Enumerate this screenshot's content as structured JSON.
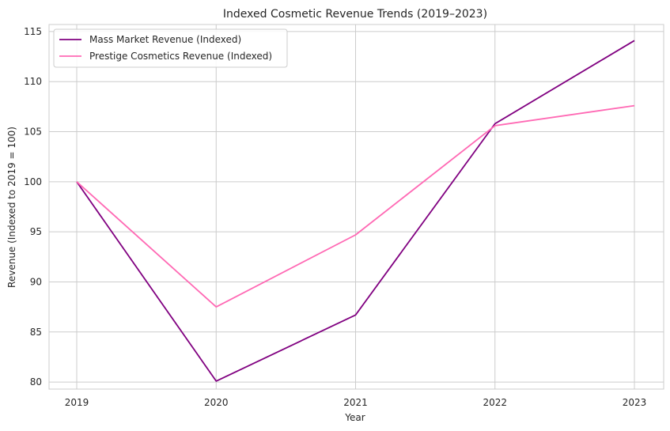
{
  "chart_data": {
    "type": "line",
    "title": "Indexed Cosmetic Revenue Trends (2019–2023)",
    "xlabel": "Year",
    "ylabel": "Revenue (Indexed to 2019 = 100)",
    "categories": [
      "2019",
      "2020",
      "2021",
      "2022",
      "2023"
    ],
    "ylim": [
      79.3,
      115.7
    ],
    "yticks": [
      80,
      85,
      90,
      95,
      100,
      105,
      110,
      115
    ],
    "grid": true,
    "legend_position": "top-left",
    "series": [
      {
        "name": "Mass Market Revenue (Indexed)",
        "color": "#800080",
        "values": [
          100.0,
          80.1,
          86.7,
          105.8,
          114.1
        ]
      },
      {
        "name": "Prestige Cosmetics Revenue (Indexed)",
        "color": "#ff69b4",
        "values": [
          100.0,
          87.5,
          94.7,
          105.6,
          107.6
        ]
      }
    ]
  }
}
